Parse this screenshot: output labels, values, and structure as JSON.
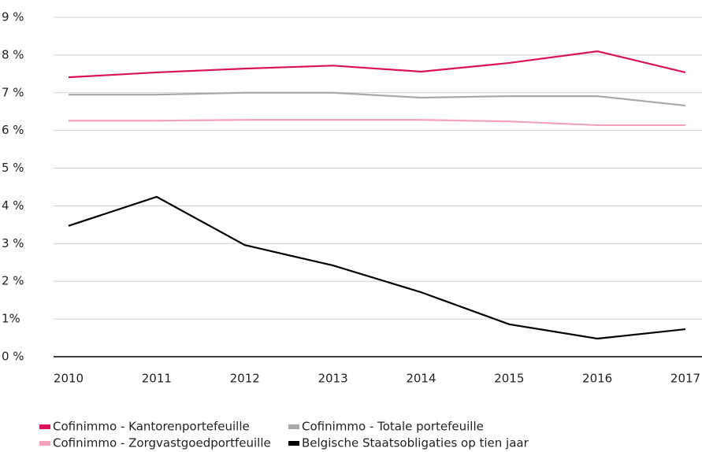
{
  "chart_data": {
    "type": "line",
    "categories": [
      "2010",
      "2011",
      "2012",
      "2013",
      "2014",
      "2015",
      "2016",
      "2017"
    ],
    "series": [
      {
        "name": "Cofinimmo - Kantorenportefeuille",
        "color": "#d9125b",
        "values": [
          7.41,
          7.54,
          7.64,
          7.72,
          7.56,
          7.79,
          8.1,
          7.54
        ]
      },
      {
        "name": "Cofinimmo - Totale portefeuille",
        "color": "#a9a9a9",
        "values": [
          6.95,
          6.95,
          7.0,
          7.0,
          6.87,
          6.91,
          6.91,
          6.66
        ]
      },
      {
        "name": "Cofinimmo - Zorgvastgoedportfeuille",
        "color": "#f2a3bb",
        "values": [
          6.26,
          6.26,
          6.28,
          6.28,
          6.28,
          6.24,
          6.14,
          6.14
        ]
      },
      {
        "name": "Belgische Staatsobligaties op tien jaar",
        "color": "#000000",
        "values": [
          3.47,
          4.24,
          2.96,
          2.42,
          1.71,
          0.86,
          0.48,
          0.73
        ]
      }
    ],
    "ylim": [
      0,
      9
    ],
    "yticks": [
      {
        "value": 0,
        "label": "0 %"
      },
      {
        "value": 1,
        "label": "1%"
      },
      {
        "value": 2,
        "label": "2 %"
      },
      {
        "value": 3,
        "label": "3 %"
      },
      {
        "value": 4,
        "label": "4 %"
      },
      {
        "value": 5,
        "label": "5 %"
      },
      {
        "value": 6,
        "label": "6 %"
      },
      {
        "value": 7,
        "label": "7 %"
      },
      {
        "value": 8,
        "label": "8 %"
      },
      {
        "value": 9,
        "label": "9 %"
      }
    ],
    "grid": true,
    "legend": "bottom"
  }
}
